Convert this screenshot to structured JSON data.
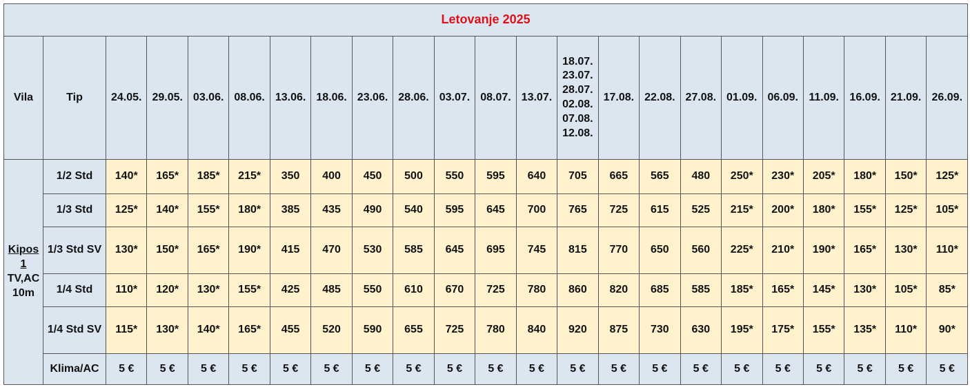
{
  "title": "Letovanje 2025",
  "header": {
    "vila": "Vila",
    "tip": "Tip",
    "dates": [
      "24.05.",
      "29.05.",
      "03.06.",
      "08.06.",
      "13.06.",
      "18.06.",
      "23.06.",
      "28.06.",
      "03.07.",
      "08.07.",
      "13.07.",
      "18.07. 23.07. 28.07. 02.08. 07.08. 12.08.",
      "17.08.",
      "22.08.",
      "27.08.",
      "01.09.",
      "06.09.",
      "11.09.",
      "16.09.",
      "21.09.",
      "26.09."
    ]
  },
  "vila": {
    "name": "Kipos 1",
    "details": "TV,AC 10m"
  },
  "rows": [
    {
      "tip": "1/2 Std",
      "prices": [
        "140*",
        "165*",
        "185*",
        "215*",
        "350",
        "400",
        "450",
        "500",
        "550",
        "595",
        "640",
        "705",
        "665",
        "565",
        "480",
        "250*",
        "230*",
        "205*",
        "180*",
        "150*",
        "125*"
      ]
    },
    {
      "tip": "1/3 Std",
      "prices": [
        "125*",
        "140*",
        "155*",
        "180*",
        "385",
        "435",
        "490",
        "540",
        "595",
        "645",
        "700",
        "765",
        "725",
        "615",
        "525",
        "215*",
        "200*",
        "180*",
        "155*",
        "125*",
        "105*"
      ]
    },
    {
      "tip": "1/3 Std SV",
      "prices": [
        "130*",
        "150*",
        "165*",
        "190*",
        "415",
        "470",
        "530",
        "585",
        "645",
        "695",
        "745",
        "815",
        "770",
        "650",
        "560",
        "225*",
        "210*",
        "190*",
        "165*",
        "130*",
        "110*"
      ]
    },
    {
      "tip": "1/4 Std",
      "prices": [
        "110*",
        "120*",
        "130*",
        "155*",
        "425",
        "485",
        "550",
        "610",
        "670",
        "725",
        "780",
        "860",
        "820",
        "685",
        "585",
        "185*",
        "165*",
        "145*",
        "130*",
        "105*",
        "85*"
      ]
    },
    {
      "tip": "1/4 Std SV",
      "prices": [
        "115*",
        "130*",
        "140*",
        "165*",
        "455",
        "520",
        "590",
        "655",
        "725",
        "780",
        "840",
        "920",
        "875",
        "730",
        "630",
        "195*",
        "175*",
        "155*",
        "135*",
        "110*",
        "90*"
      ]
    },
    {
      "tip": "Klima/AC",
      "prices": [
        "5 €",
        "5 €",
        "5 €",
        "5 €",
        "5 €",
        "5 €",
        "5 €",
        "5 €",
        "5 €",
        "5 €",
        "5 €",
        "5 €",
        "5 €",
        "5 €",
        "5 €",
        "5 €",
        "5 €",
        "5 €",
        "5 €",
        "5 €",
        "5 €"
      ]
    }
  ]
}
